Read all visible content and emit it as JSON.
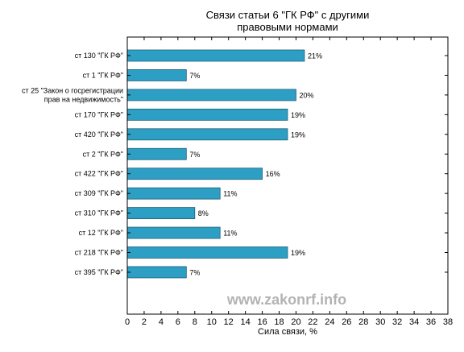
{
  "chart_data": {
    "type": "bar",
    "orientation": "horizontal",
    "title": [
      "Связи статьи 6 \"ГК РФ\" с другими",
      "правовыми нормами"
    ],
    "xlabel": "Сила связи, %",
    "ylabel": "",
    "xlim": [
      0,
      38
    ],
    "x_ticks": [
      0,
      2,
      4,
      6,
      8,
      10,
      12,
      14,
      16,
      18,
      20,
      22,
      24,
      26,
      28,
      30,
      32,
      34,
      36,
      38
    ],
    "grid": false,
    "bar_color": "#2e9fc4",
    "categories": [
      [
        "ст 130 \"ГК РФ\""
      ],
      [
        "ст 1 \"ГК РФ\""
      ],
      [
        "ст 25 \"Закон о госрегистрации",
        "прав на недвижимость\""
      ],
      [
        "ст 170 \"ГК РФ\""
      ],
      [
        "ст 420 \"ГК РФ\""
      ],
      [
        "ст 2 \"ГК РФ\""
      ],
      [
        "ст 422 \"ГК РФ\""
      ],
      [
        "ст 309 \"ГК РФ\""
      ],
      [
        "ст 310 \"ГК РФ\""
      ],
      [
        "ст 12 \"ГК РФ\""
      ],
      [
        "ст 218 \"ГК РФ\""
      ],
      [
        "ст 395 \"ГК РФ\""
      ]
    ],
    "values": [
      21,
      7,
      20,
      19,
      19,
      7,
      16,
      11,
      8,
      11,
      19,
      7
    ],
    "value_labels": [
      "21%",
      "7%",
      "20%",
      "19%",
      "19%",
      "7%",
      "16%",
      "11%",
      "8%",
      "11%",
      "19%",
      "7%"
    ]
  },
  "watermark": "www.zakonrf.info"
}
